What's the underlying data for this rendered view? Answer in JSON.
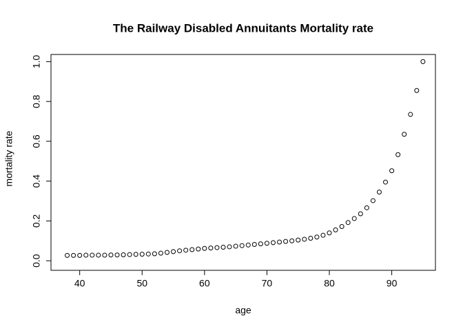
{
  "chart_data": {
    "type": "scatter",
    "title": "The Railway Disabled Annuitants Mortality rate",
    "x_label": "age",
    "y_label": "mortality rate",
    "x": [
      38,
      39,
      40,
      41,
      42,
      43,
      44,
      45,
      46,
      47,
      48,
      49,
      50,
      51,
      52,
      53,
      54,
      55,
      56,
      57,
      58,
      59,
      60,
      61,
      62,
      63,
      64,
      65,
      66,
      67,
      68,
      69,
      70,
      71,
      72,
      73,
      74,
      75,
      76,
      77,
      78,
      79,
      80,
      81,
      82,
      83,
      84,
      85,
      86,
      87,
      88,
      89,
      90,
      91,
      92,
      93,
      94,
      95
    ],
    "values": [
      0.027,
      0.027,
      0.027,
      0.028,
      0.028,
      0.028,
      0.028,
      0.029,
      0.029,
      0.03,
      0.031,
      0.032,
      0.033,
      0.034,
      0.035,
      0.038,
      0.042,
      0.046,
      0.05,
      0.053,
      0.056,
      0.059,
      0.062,
      0.064,
      0.066,
      0.068,
      0.07,
      0.073,
      0.076,
      0.079,
      0.082,
      0.085,
      0.088,
      0.091,
      0.094,
      0.097,
      0.1,
      0.104,
      0.108,
      0.113,
      0.119,
      0.128,
      0.14,
      0.155,
      0.172,
      0.192,
      0.212,
      0.236,
      0.266,
      0.302,
      0.345,
      0.395,
      0.452,
      0.533,
      0.635,
      0.735,
      0.855,
      1.0
    ],
    "color": "#000000",
    "xlim": [
      35.4,
      97.0
    ],
    "ylim": [
      -0.048,
      1.036
    ],
    "xticks": [
      40,
      50,
      60,
      70,
      80,
      90
    ],
    "yticks": [
      {
        "value": 0,
        "label": "0.0"
      },
      0.2,
      0.4,
      0.6,
      0.8,
      {
        "value": 1,
        "label": "1.0"
      }
    ]
  }
}
